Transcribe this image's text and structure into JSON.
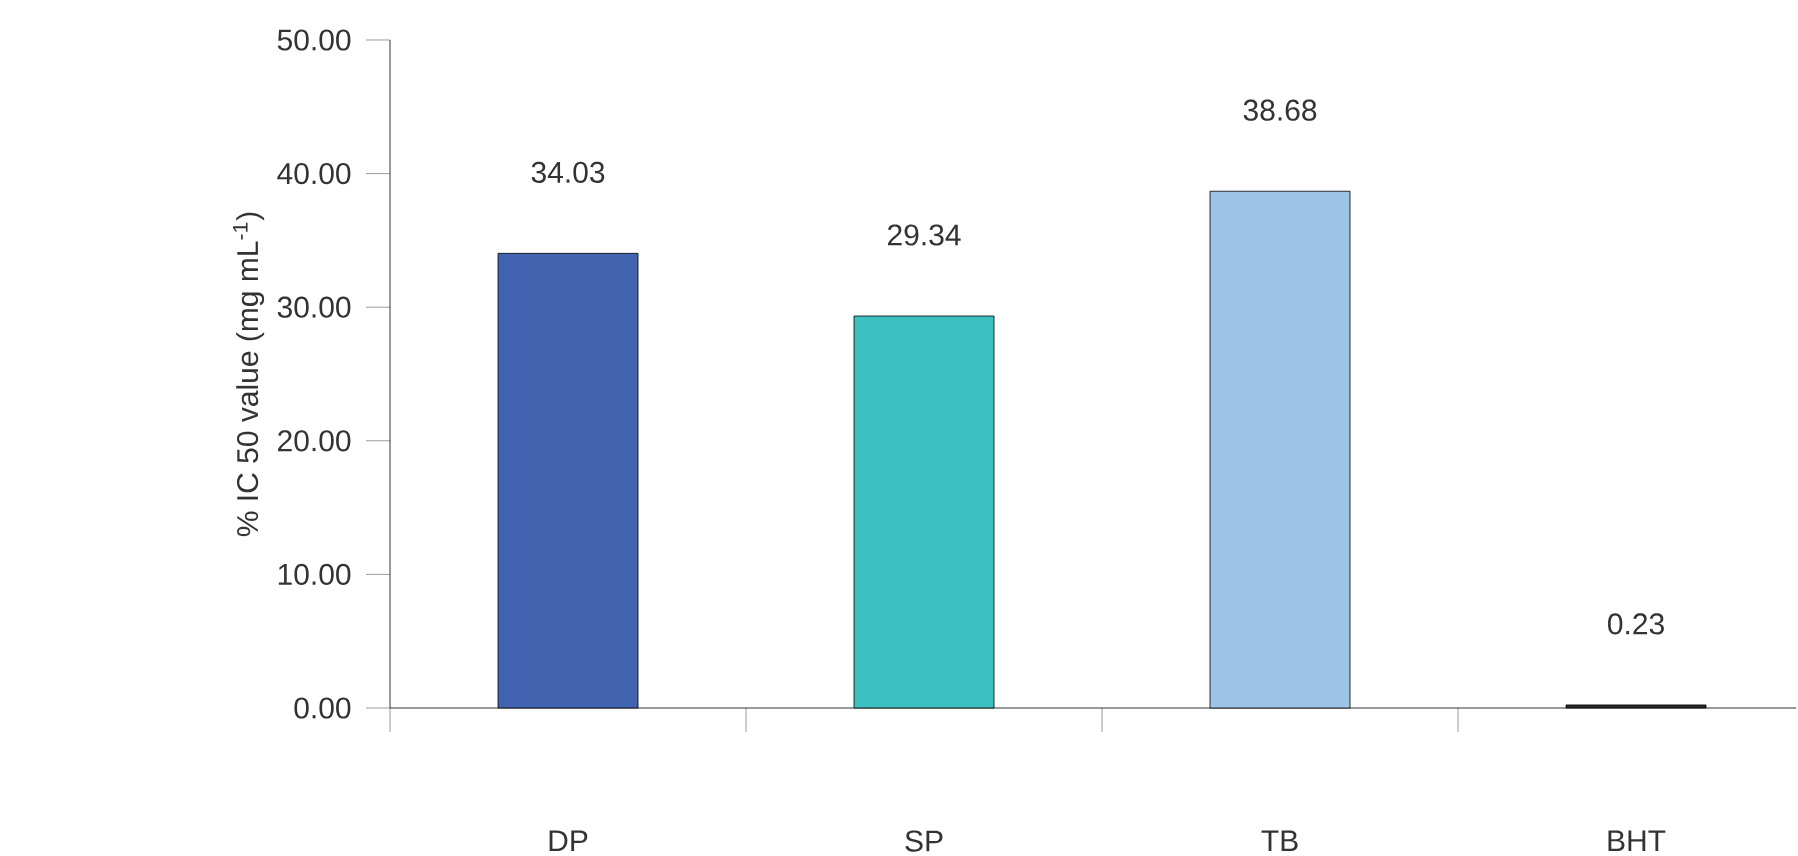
{
  "chart_data": {
    "type": "bar",
    "ylabel": "% IC 50 value (mg mL$^{-1}$)",
    "categories": [
      "DP",
      "SP",
      "TB",
      "BHT"
    ],
    "values": [
      34.03,
      29.34,
      38.68,
      0.23
    ],
    "colors": [
      "#4263b0",
      "#3cc0c0",
      "#9dc3e6",
      "#2a2a2a"
    ],
    "ylim": [
      0,
      50
    ],
    "yticks": [
      {
        "value": 0,
        "label": "0.00"
      },
      {
        "value": 10,
        "label": "10.00"
      },
      {
        "value": 20,
        "label": "20.00"
      },
      {
        "value": 30,
        "label": "30.00"
      },
      {
        "value": 40,
        "label": "40.00"
      },
      {
        "value": 50,
        "label": "50.00"
      }
    ],
    "data_labels": true,
    "grid": false
  }
}
